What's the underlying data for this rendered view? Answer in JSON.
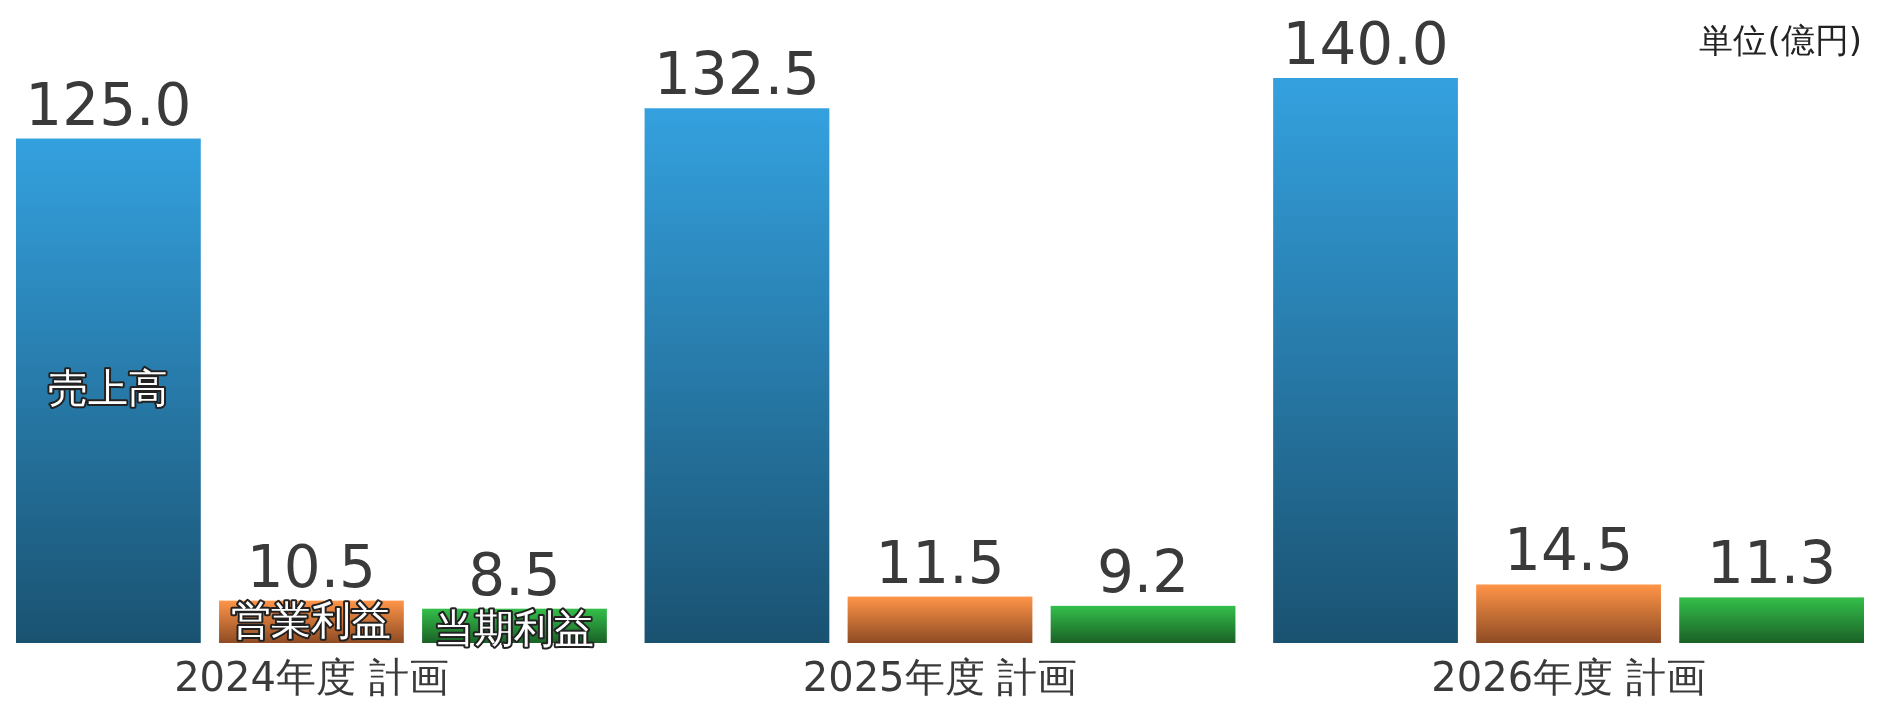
{
  "chart_data": {
    "type": "bar",
    "categories": [
      "2024年度 計画",
      "2025年度 計画",
      "2026年度 計画"
    ],
    "series": [
      {
        "name": "売上高",
        "color": "#2a82b4",
        "values": [
          125.0,
          132.5,
          140.0
        ],
        "value_labels": [
          "125.0",
          "132.5",
          "140.0"
        ]
      },
      {
        "name": "営業利益",
        "color": "#e2783a",
        "values": [
          10.5,
          11.5,
          14.5
        ],
        "value_labels": [
          "10.5",
          "11.5",
          "14.5"
        ]
      },
      {
        "name": "当期利益",
        "color": "#2a9a3c",
        "values": [
          8.5,
          9.2,
          11.3
        ],
        "value_labels": [
          "8.5",
          "9.2",
          "11.3"
        ]
      }
    ],
    "annotations": [
      "単位(億円)"
    ]
  }
}
